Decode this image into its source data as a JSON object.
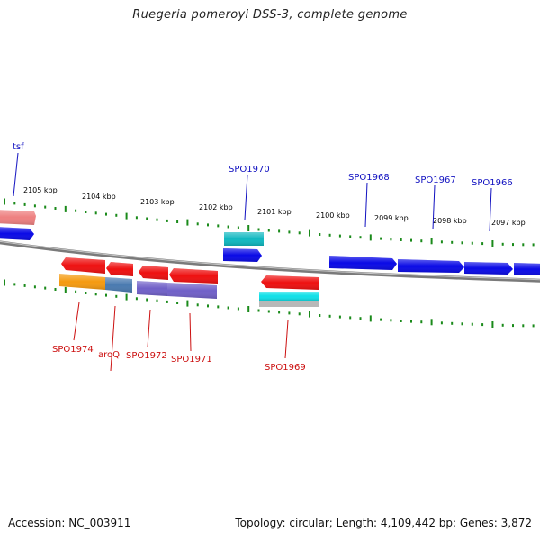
{
  "title": "Ruegeria pomeroyi DSS-3, complete genome",
  "footer": {
    "accession": "Accession: NC_003911",
    "summary": "Topology: circular; Length: 4,109,442 bp; Genes: 3,872"
  },
  "colors": {
    "backbone": "#8a8a8a",
    "ticks": "#1a8a1a",
    "forward_label": "#1010c0",
    "reverse_label": "#cc1010"
  },
  "scale_labels": [
    "2105 kbp",
    "2104 kbp",
    "2103 kbp",
    "2102 kbp",
    "2101 kbp",
    "2100 kbp",
    "2099 kbp",
    "2098 kbp",
    "2097 kbp"
  ],
  "forward_labels": [
    "tsf",
    "SPO1970",
    "SPO1968",
    "SPO1967",
    "SPO1966"
  ],
  "reverse_labels": [
    "SPO1974",
    "aroQ",
    "SPO1972",
    "SPO1971",
    "SPO1969"
  ],
  "feature_colors": {
    "blue": "#0a0ae6",
    "red": "#ee1010",
    "pink": "#ee8080",
    "cyan": "#10c8c8",
    "teal": "#10a0a8",
    "orange": "#f59a10",
    "steel": "#4a7ab0",
    "purple": "#7060c8",
    "gray": "#b8b8b8"
  }
}
